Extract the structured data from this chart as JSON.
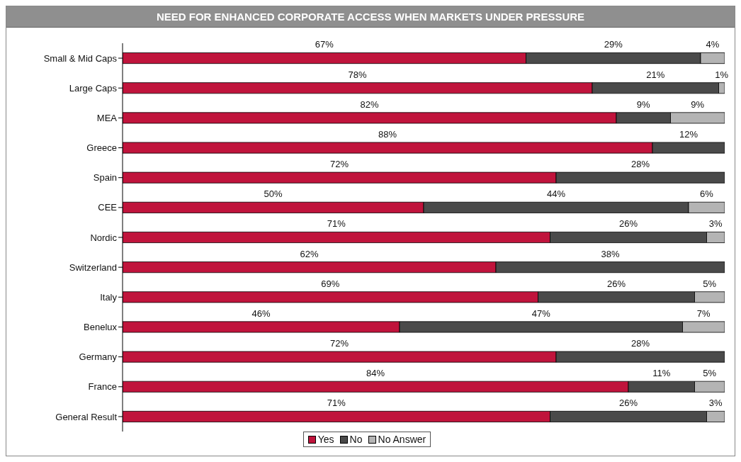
{
  "chart_data": {
    "type": "bar",
    "orientation": "horizontal",
    "stacked": true,
    "title": "NEED FOR ENHANCED CORPORATE ACCESS WHEN MARKETS UNDER PRESSURE",
    "categories": [
      "Small & Mid Caps",
      "Large Caps",
      "MEA",
      "Greece",
      "Spain",
      "CEE",
      "Nordic",
      "Switzerland",
      "Italy",
      "Benelux",
      "Germany",
      "France",
      "General Result"
    ],
    "series": [
      {
        "name": "Yes",
        "color": "#c0143c",
        "values": [
          67,
          78,
          82,
          88,
          72,
          50,
          71,
          62,
          69,
          46,
          72,
          84,
          71
        ],
        "value_labels": [
          "67%",
          "78%",
          "82%",
          "88%",
          "72%",
          "50%",
          "71%",
          "62%",
          "69%",
          "46%",
          "72%",
          "84%",
          "71%"
        ]
      },
      {
        "name": "No",
        "color": "#4a4a4a",
        "values": [
          29,
          21,
          9,
          12,
          28,
          44,
          26,
          38,
          26,
          47,
          28,
          11,
          26
        ],
        "value_labels": [
          "29%",
          "21%",
          "9%",
          "12%",
          "28%",
          "44%",
          "26%",
          "38%",
          "26%",
          "47%",
          "28%",
          "11%",
          "26%"
        ]
      },
      {
        "name": "No Answer",
        "color": "#b4b4b4",
        "values": [
          4,
          1,
          9,
          0,
          0,
          6,
          3,
          0,
          5,
          7,
          0,
          5,
          3
        ],
        "value_labels": [
          "4%",
          "1%",
          "9%",
          null,
          null,
          "6%",
          "3%",
          null,
          "5%",
          "7%",
          null,
          "5%",
          "3%"
        ]
      }
    ],
    "tick_labels": "y",
    "legend": "bottom"
  }
}
